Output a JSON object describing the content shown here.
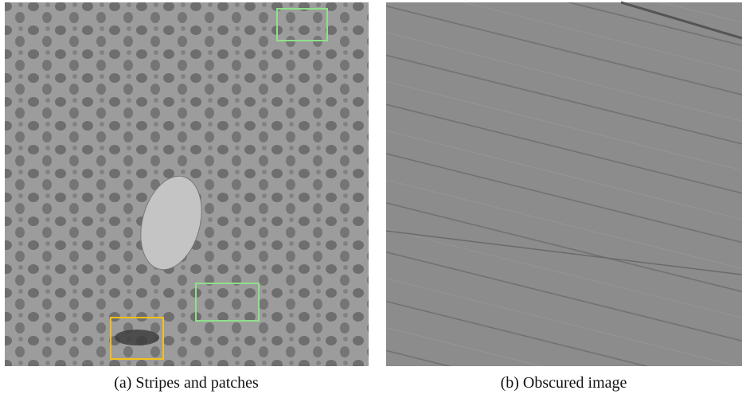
{
  "figure": {
    "panels": [
      {
        "caption": "(a) Stripes and patches"
      },
      {
        "caption": "(b) Obscured image"
      }
    ]
  }
}
